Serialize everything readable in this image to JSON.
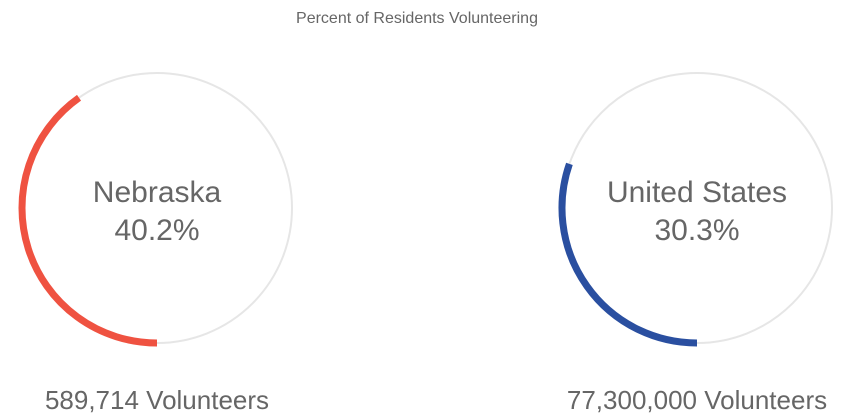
{
  "chart_data": {
    "type": "ring",
    "title": "Percent of Residents Volunteering",
    "categories": [
      "Nebraska",
      "United States"
    ],
    "values": [
      40.2,
      30.3
    ],
    "value_labels": [
      "40.2%",
      "30.3%"
    ],
    "footers": [
      "589,714 Volunteers",
      "77,300,000 Volunteers"
    ],
    "colors": [
      "#ef5241",
      "#2a4fa0"
    ],
    "ylim": [
      0,
      100
    ]
  }
}
